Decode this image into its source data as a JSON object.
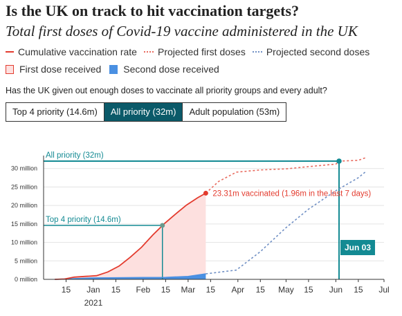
{
  "header": {
    "title": "Is the UK on track to hit vaccination targets?",
    "subtitle": "Total first doses of Covid-19 vaccine administered in the UK"
  },
  "legend": {
    "cumulative": "Cumulative vaccination rate",
    "projected_first": "Projected first doses",
    "projected_second": "Projected second doses",
    "first_received": "First dose received",
    "second_received": "Second dose received"
  },
  "question": "Has the UK given out enough doses to vaccinate all priority groups and every adult?",
  "toggle": {
    "options": [
      "Top 4 priority (14.6m)",
      "All priority (32m)",
      "Adult population (53m)"
    ],
    "active_index": 1
  },
  "colors": {
    "red": "#e33b2e",
    "red_fill": "#fde0df",
    "blue": "#4a90e2",
    "blue_dotted": "#6f8fc4",
    "teal": "#138a93",
    "active_toggle": "#0b5a69"
  },
  "chart_data": {
    "type": "line",
    "ylim": [
      0,
      32
    ],
    "yticks": [
      {
        "v": 0,
        "label": "0 million"
      },
      {
        "v": 5,
        "label": "5 million"
      },
      {
        "v": 10,
        "label": "10 million"
      },
      {
        "v": 15,
        "label": "15 million"
      },
      {
        "v": 20,
        "label": "20 million"
      },
      {
        "v": 25,
        "label": "25 million"
      },
      {
        "v": 30,
        "label": "30 million"
      }
    ],
    "x_start": "2020-12-01",
    "x_end": "2021-07-01",
    "xticks": [
      {
        "date": "2020-12-15",
        "label": "15"
      },
      {
        "date": "2021-01-01",
        "label": "Jan"
      },
      {
        "date": "2021-01-15",
        "label": "15"
      },
      {
        "date": "2021-02-01",
        "label": "Feb"
      },
      {
        "date": "2021-02-15",
        "label": "15"
      },
      {
        "date": "2021-03-01",
        "label": "Mar"
      },
      {
        "date": "2021-03-15",
        "label": "15"
      },
      {
        "date": "2021-04-01",
        "label": "Apr"
      },
      {
        "date": "2021-04-15",
        "label": "15"
      },
      {
        "date": "2021-05-01",
        "label": "May"
      },
      {
        "date": "2021-05-15",
        "label": "15"
      },
      {
        "date": "2021-06-01",
        "label": "Jun"
      },
      {
        "date": "2021-06-15",
        "label": "15"
      },
      {
        "date": "2021-07-01",
        "label": "Jul"
      }
    ],
    "year_label": "2021",
    "series": [
      {
        "name": "Cumulative vaccination rate",
        "points": [
          [
            "2020-12-08",
            0
          ],
          [
            "2020-12-14",
            0.1
          ],
          [
            "2020-12-20",
            0.6
          ],
          [
            "2020-12-27",
            0.8
          ],
          [
            "2021-01-03",
            1.0
          ],
          [
            "2021-01-10",
            2.0
          ],
          [
            "2021-01-17",
            3.6
          ],
          [
            "2021-01-24",
            6.0
          ],
          [
            "2021-01-31",
            8.7
          ],
          [
            "2021-02-07",
            12.0
          ],
          [
            "2021-02-14",
            15.0
          ],
          [
            "2021-02-21",
            17.6
          ],
          [
            "2021-02-28",
            20.1
          ],
          [
            "2021-03-07",
            22.1
          ],
          [
            "2021-03-12",
            23.31
          ]
        ]
      },
      {
        "name": "Second dose received",
        "points": [
          [
            "2020-12-08",
            0
          ],
          [
            "2020-12-31",
            0.4
          ],
          [
            "2021-01-15",
            0.45
          ],
          [
            "2021-02-01",
            0.5
          ],
          [
            "2021-02-15",
            0.55
          ],
          [
            "2021-03-01",
            0.8
          ],
          [
            "2021-03-12",
            1.5
          ]
        ]
      },
      {
        "name": "Projected first doses",
        "points": [
          [
            "2021-03-12",
            23.31
          ],
          [
            "2021-03-20",
            26.5
          ],
          [
            "2021-03-31",
            29.0
          ],
          [
            "2021-04-15",
            29.6
          ],
          [
            "2021-05-01",
            29.9
          ],
          [
            "2021-05-15",
            30.5
          ],
          [
            "2021-06-01",
            31.2
          ],
          [
            "2021-06-03",
            32.0
          ],
          [
            "2021-06-15",
            32.2
          ],
          [
            "2021-06-20",
            33.0
          ]
        ]
      },
      {
        "name": "Projected second doses",
        "points": [
          [
            "2021-03-12",
            1.5
          ],
          [
            "2021-03-31",
            2.5
          ],
          [
            "2021-04-15",
            7.5
          ],
          [
            "2021-05-01",
            14.0
          ],
          [
            "2021-05-15",
            19.0
          ],
          [
            "2021-06-01",
            24.0
          ],
          [
            "2021-06-15",
            27.5
          ],
          [
            "2021-06-20",
            29.3
          ]
        ]
      }
    ],
    "annotations": {
      "latest_date": "2021-03-12",
      "latest_value": 23.31,
      "latest_label": "23.31m vaccinated (1.96m in the last 7 days)",
      "top4_label": "Top 4 priority (14.6m)",
      "top4_value": 14.6,
      "top4_date": "2021-02-13",
      "all_label": "All priority (32m)",
      "all_value": 32,
      "target_date": "2021-06-03",
      "target_date_label": "Jun 03"
    }
  }
}
